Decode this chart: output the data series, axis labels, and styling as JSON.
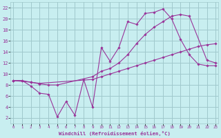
{
  "xlabel": "Windchill (Refroidissement éolien,°C)",
  "background_color": "#c8eef0",
  "grid_color": "#a0c8cc",
  "line_color": "#993399",
  "x_ticks": [
    0,
    1,
    2,
    3,
    4,
    5,
    6,
    7,
    8,
    9,
    10,
    11,
    12,
    13,
    14,
    15,
    16,
    17,
    18,
    19,
    20,
    21,
    22,
    23
  ],
  "y_ticks": [
    2,
    4,
    6,
    8,
    10,
    12,
    14,
    16,
    18,
    20,
    22
  ],
  "xlim": [
    -0.3,
    23.3
  ],
  "ylim": [
    1,
    23
  ],
  "line1_x": [
    0,
    1,
    2,
    3,
    4,
    5,
    6,
    7,
    8,
    9,
    10,
    11,
    12,
    13,
    14,
    15,
    16,
    17,
    18,
    19,
    20,
    21,
    22,
    23
  ],
  "line1_y": [
    8.8,
    8.8,
    7.8,
    6.5,
    6.3,
    2.2,
    5.0,
    2.5,
    9.0,
    4.0,
    14.8,
    12.3,
    14.8,
    19.5,
    19.0,
    21.0,
    21.2,
    21.8,
    20.0,
    16.3,
    13.5,
    11.8,
    11.5,
    11.5
  ],
  "line2_x": [
    0,
    2,
    3,
    4,
    5,
    9,
    10,
    11,
    12,
    13,
    14,
    15,
    16,
    17,
    18,
    19,
    20,
    22,
    23
  ],
  "line2_y": [
    8.8,
    8.5,
    8.2,
    8.0,
    8.0,
    9.5,
    10.5,
    11.0,
    12.0,
    13.5,
    15.5,
    17.2,
    18.5,
    19.5,
    20.5,
    20.8,
    20.5,
    12.5,
    12.0
  ],
  "line3_x": [
    0,
    1,
    2,
    3,
    9,
    10,
    11,
    12,
    13,
    14,
    15,
    16,
    17,
    18,
    19,
    20,
    21,
    22,
    23
  ],
  "line3_y": [
    8.8,
    8.8,
    8.5,
    8.3,
    9.0,
    9.5,
    10.0,
    10.5,
    11.0,
    11.5,
    12.0,
    12.5,
    13.0,
    13.5,
    14.0,
    14.5,
    15.0,
    15.3,
    15.5
  ]
}
